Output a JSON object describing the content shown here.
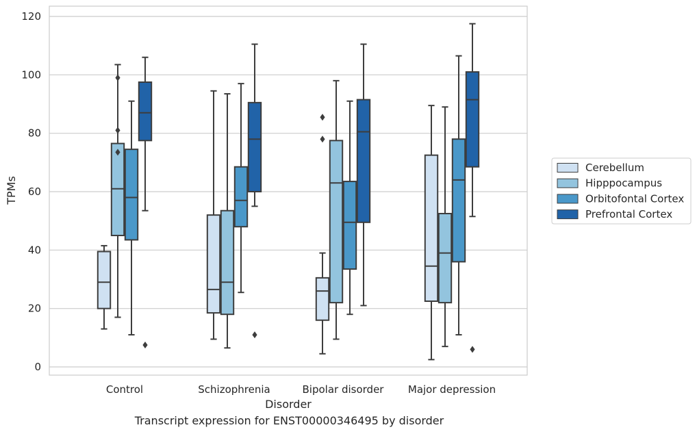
{
  "caption": "Transcript expression for ENST00000346495 by disorder",
  "chart_data": {
    "type": "box",
    "xlabel": "Disorder",
    "ylabel": "TPMs",
    "ylim": [
      -3,
      124
    ],
    "yticks": [
      0,
      20,
      40,
      60,
      80,
      100,
      120
    ],
    "grid": "horizontal",
    "legend_position": "right",
    "categories": [
      "Control",
      "Schizophrenia",
      "Bipolar disorder",
      "Major depression"
    ],
    "series": [
      {
        "name": "Cerebellum",
        "color": "#cfe1f2",
        "boxes": [
          {
            "whislo": 13,
            "q1": 20,
            "med": 29,
            "q3": 39.5,
            "whishi": 41.5,
            "fliers": []
          },
          {
            "whislo": 9.5,
            "q1": 18.5,
            "med": 26.5,
            "q3": 52,
            "whishi": 94.5,
            "fliers": []
          },
          {
            "whislo": 4.5,
            "q1": 16,
            "med": 26,
            "q3": 30.5,
            "whishi": 39,
            "fliers": [
              78,
              85.5
            ]
          },
          {
            "whislo": 2.5,
            "q1": 22.5,
            "med": 34.5,
            "q3": 72.5,
            "whishi": 89.5,
            "fliers": []
          }
        ]
      },
      {
        "name": "Hipppocampus",
        "color": "#93c4de",
        "boxes": [
          {
            "whislo": 17,
            "q1": 45,
            "med": 61,
            "q3": 76.5,
            "whishi": 103.5,
            "fliers": [
              73.5,
              81,
              99
            ]
          },
          {
            "whislo": 6.5,
            "q1": 18,
            "med": 29,
            "q3": 53.5,
            "whishi": 93.5,
            "fliers": []
          },
          {
            "whislo": 9.5,
            "q1": 22,
            "med": 63,
            "q3": 77.5,
            "whishi": 98,
            "fliers": []
          },
          {
            "whislo": 7,
            "q1": 22,
            "med": 39,
            "q3": 52.5,
            "whishi": 89,
            "fliers": []
          }
        ]
      },
      {
        "name": "Orbitofontal Cortex",
        "color": "#4a98c9",
        "boxes": [
          {
            "whislo": 11,
            "q1": 43.5,
            "med": 58,
            "q3": 74.5,
            "whishi": 91,
            "fliers": []
          },
          {
            "whislo": 25.5,
            "q1": 48,
            "med": 57,
            "q3": 68.5,
            "whishi": 97,
            "fliers": []
          },
          {
            "whislo": 18,
            "q1": 33.5,
            "med": 49.5,
            "q3": 63.5,
            "whishi": 91,
            "fliers": []
          },
          {
            "whislo": 11,
            "q1": 36,
            "med": 64,
            "q3": 78,
            "whishi": 106.5,
            "fliers": []
          }
        ]
      },
      {
        "name": "Prefrontal Cortex",
        "color": "#2163a8",
        "boxes": [
          {
            "whislo": 53.5,
            "q1": 77.5,
            "med": 87,
            "q3": 97.5,
            "whishi": 106,
            "fliers": [
              7.5
            ]
          },
          {
            "whislo": 55,
            "q1": 60,
            "med": 78,
            "q3": 90.5,
            "whishi": 110.5,
            "fliers": [
              11
            ]
          },
          {
            "whislo": 21,
            "q1": 49.5,
            "med": 80.5,
            "q3": 91.5,
            "whishi": 110.5,
            "fliers": []
          },
          {
            "whislo": 51.5,
            "q1": 68.5,
            "med": 91.5,
            "q3": 101,
            "whishi": 117.5,
            "fliers": [
              6
            ]
          }
        ]
      }
    ]
  }
}
